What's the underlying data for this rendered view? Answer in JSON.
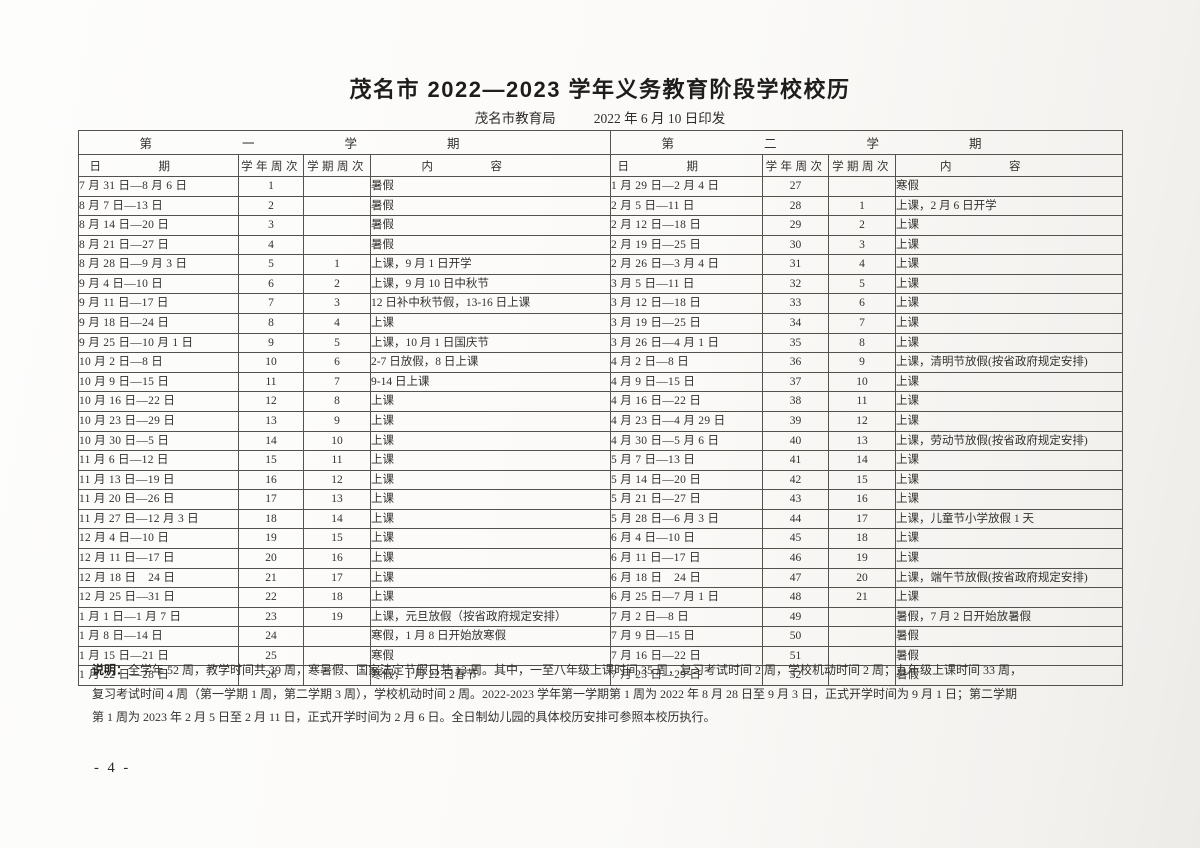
{
  "header": {
    "title": "茂名市 2022—2023 学年义务教育阶段学校校历",
    "issuer": "茂名市教育局",
    "print_date": "2022 年 6 月 10 日印发"
  },
  "table": {
    "semester1_title": "第一学期",
    "semester2_title": "第二学期",
    "columns": [
      "日期",
      "学年周次",
      "学期周次",
      "内容"
    ],
    "rows": [
      {
        "s1": [
          "7 月 31 日—8 月 6 日",
          "1",
          "",
          "暑假"
        ],
        "s2": [
          "1 月 29 日—2 月 4 日",
          "27",
          "",
          "寒假"
        ]
      },
      {
        "s1": [
          "8 月 7 日—13 日",
          "2",
          "",
          "暑假"
        ],
        "s2": [
          "2 月 5 日—11 日",
          "28",
          "1",
          "上课，2 月 6 日开学"
        ]
      },
      {
        "s1": [
          "8 月 14 日—20 日",
          "3",
          "",
          "暑假"
        ],
        "s2": [
          "2 月 12 日—18 日",
          "29",
          "2",
          "上课"
        ]
      },
      {
        "s1": [
          "8 月 21 日—27 日",
          "4",
          "",
          "暑假"
        ],
        "s2": [
          "2 月 19 日—25 日",
          "30",
          "3",
          "上课"
        ]
      },
      {
        "s1": [
          "8 月 28 日—9 月 3 日",
          "5",
          "1",
          "上课，9 月 1 日开学"
        ],
        "s2": [
          "2 月 26 日—3 月 4 日",
          "31",
          "4",
          "上课"
        ]
      },
      {
        "s1": [
          "9 月 4 日—10 日",
          "6",
          "2",
          "上课，9 月 10 日中秋节"
        ],
        "s2": [
          "3 月 5 日—11 日",
          "32",
          "5",
          "上课"
        ]
      },
      {
        "s1": [
          "9 月 11 日—17 日",
          "7",
          "3",
          "12 日补中秋节假，13-16 日上课"
        ],
        "s2": [
          "3 月 12 日—18 日",
          "33",
          "6",
          "上课"
        ]
      },
      {
        "s1": [
          "9 月 18 日—24 日",
          "8",
          "4",
          "上课"
        ],
        "s2": [
          "3 月 19 日—25 日",
          "34",
          "7",
          "上课"
        ]
      },
      {
        "s1": [
          "9 月 25 日—10 月 1 日",
          "9",
          "5",
          "上课，10 月 1 日国庆节"
        ],
        "s2": [
          "3 月 26 日—4 月 1 日",
          "35",
          "8",
          "上课"
        ]
      },
      {
        "s1": [
          "10 月 2 日—8 日",
          "10",
          "6",
          "2-7 日放假，8 日上课"
        ],
        "s2": [
          "4 月 2 日—8 日",
          "36",
          "9",
          "上课，清明节放假(按省政府规定安排)"
        ]
      },
      {
        "s1": [
          "10 月 9 日—15 日",
          "11",
          "7",
          "9-14 日上课"
        ],
        "s2": [
          "4 月 9 日—15 日",
          "37",
          "10",
          "上课"
        ]
      },
      {
        "s1": [
          "10 月 16 日—22 日",
          "12",
          "8",
          "上课"
        ],
        "s2": [
          "4 月 16 日—22 日",
          "38",
          "11",
          "上课"
        ]
      },
      {
        "s1": [
          "10 月 23 日—29 日",
          "13",
          "9",
          "上课"
        ],
        "s2": [
          "4 月 23 日—4 月 29 日",
          "39",
          "12",
          "上课"
        ]
      },
      {
        "s1": [
          "10 月 30 日—5 日",
          "14",
          "10",
          "上课"
        ],
        "s2": [
          "4 月 30 日—5 月 6 日",
          "40",
          "13",
          "上课，劳动节放假(按省政府规定安排)"
        ]
      },
      {
        "s1": [
          "11 月 6 日—12 日",
          "15",
          "11",
          "上课"
        ],
        "s2": [
          "5 月 7 日—13 日",
          "41",
          "14",
          "上课"
        ]
      },
      {
        "s1": [
          "11 月 13 日—19 日",
          "16",
          "12",
          "上课"
        ],
        "s2": [
          "5 月 14 日—20 日",
          "42",
          "15",
          "上课"
        ]
      },
      {
        "s1": [
          "11 月 20 日—26 日",
          "17",
          "13",
          "上课"
        ],
        "s2": [
          "5 月 21 日—27 日",
          "43",
          "16",
          "上课"
        ]
      },
      {
        "s1": [
          "11 月 27 日—12 月 3 日",
          "18",
          "14",
          "上课"
        ],
        "s2": [
          "5 月 28 日—6 月 3 日",
          "44",
          "17",
          "上课，儿童节小学放假 1 天"
        ]
      },
      {
        "s1": [
          "12 月 4 日—10 日",
          "19",
          "15",
          "上课"
        ],
        "s2": [
          "6 月 4 日—10 日",
          "45",
          "18",
          "上课"
        ]
      },
      {
        "s1": [
          "12 月 11 日—17 日",
          "20",
          "16",
          "上课"
        ],
        "s2": [
          "6 月 11 日—17 日",
          "46",
          "19",
          "上课"
        ]
      },
      {
        "s1": [
          "12 月 18 日　24 日",
          "21",
          "17",
          "上课"
        ],
        "s2": [
          "6 月 18 日　24 日",
          "47",
          "20",
          "上课，端午节放假(按省政府规定安排)"
        ]
      },
      {
        "s1": [
          "12 月 25 日—31 日",
          "22",
          "18",
          "上课"
        ],
        "s2": [
          "6 月 25 日—7 月 1 日",
          "48",
          "21",
          "上课"
        ]
      },
      {
        "s1": [
          "1 月 1 日—1 月 7 日",
          "23",
          "19",
          "上课，元旦放假（按省政府规定安排）"
        ],
        "s2": [
          "7 月 2 日—8 日",
          "49",
          "",
          "暑假，7 月 2 日开始放暑假"
        ]
      },
      {
        "s1": [
          "1 月 8 日—14 日",
          "24",
          "",
          "寒假，1 月 8 日开始放寒假"
        ],
        "s2": [
          "7 月 9 日—15 日",
          "50",
          "",
          "暑假"
        ]
      },
      {
        "s1": [
          "1 月 15 日—21 日",
          "25",
          "",
          "寒假"
        ],
        "s2": [
          "7 月 16 日—22 日",
          "51",
          "",
          "暑假"
        ]
      },
      {
        "s1": [
          "1 月 22 日—28 日",
          "26",
          "",
          "寒假，1 月 22 日春节"
        ],
        "s2": [
          "7 月 23 日—29 日",
          "52",
          "",
          "暑假"
        ]
      }
    ]
  },
  "notes": {
    "label": "说明：",
    "lines": [
      "全学年 52 周，教学时间共 39 周，寒暑假、国家法定节假日共 13 周。其中，一至八年级上课时间 35 周，复习考试时间 2 周，学校机动时间 2 周；九年级上课时间 33 周，",
      "复习考试时间 4 周（第一学期 1 周，第二学期 3 周），学校机动时间 2 周。2022-2023 学年第一学期第 1 周为 2022 年 8 月 28 日至 9 月 3 日，正式开学时间为 9 月 1 日；第二学期",
      "第 1 周为 2023 年 2 月 5 日至 2 月 11 日，正式开学时间为 2 月 6 日。全日制幼儿园的具体校历安排可参照本校历执行。"
    ]
  },
  "footer": {
    "page_number": "- 4 -"
  }
}
